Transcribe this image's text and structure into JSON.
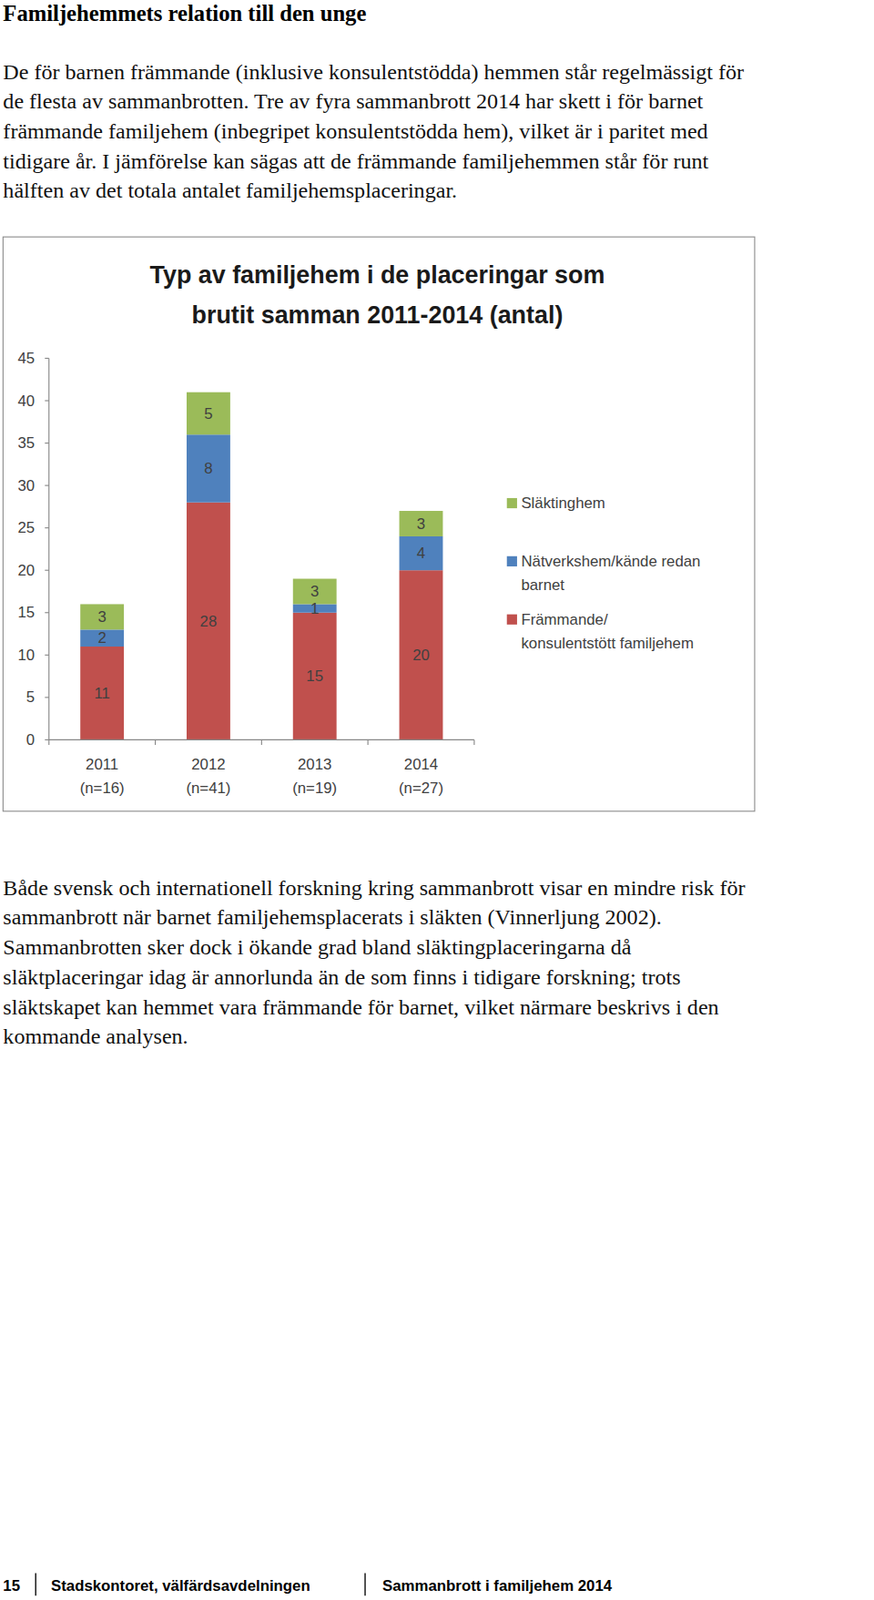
{
  "heading": "Familjehemmets relation till den unge",
  "paragraphs": [
    [
      "De för barnen främmande (inklusive konsulentstödda) hemmen står regelmässigt för",
      "de flesta av sammanbrotten. Tre av fyra sammanbrott 2014 har skett i för barnet",
      "främmande familjehem (inbegripet konsulentstödda hem), vilket är i paritet med",
      "tidigare år. I jämförelse kan sägas att de främmande familjehemmen står för runt",
      "hälften av det totala antalet familjehemsplaceringar."
    ],
    [
      "Både svensk och internationell forskning kring sammanbrott visar en mindre risk för",
      "sammanbrott när barnet familjehemsplacerats i släkten (Vinnerljung 2002).",
      "Sammanbrotten sker dock i ökande grad bland släktingplaceringarna då",
      "släktplaceringar idag är annorlunda än de som finns i tidigare forskning; trots",
      "släktskapet kan hemmet vara främmande för barnet, vilket närmare beskrivs i den",
      "kommande analysen."
    ]
  ],
  "chart_data": {
    "type": "bar",
    "title": "Typ av familjehem i de placeringar som\nbrutit samman 2011-2014 (antal)",
    "categories": [
      "2011\n(n=16)",
      "2012\n(n=41)",
      "2013\n(n=19)",
      "2014\n(n=27)"
    ],
    "series": [
      {
        "name": "Främmande/\nkonsulentstött familjehem",
        "color": "#c0504d",
        "values": [
          11,
          28,
          15,
          20
        ]
      },
      {
        "name": "Nätverkshem/kände redan\nbarnet",
        "color": "#4f81bd",
        "values": [
          2,
          8,
          1,
          4
        ]
      },
      {
        "name": "Släktinghem",
        "color": "#9bbb59",
        "values": [
          3,
          5,
          3,
          3
        ]
      }
    ],
    "stacked": true,
    "data_labels": true,
    "ylim": [
      0,
      45
    ],
    "yticks": [
      0,
      5,
      10,
      15,
      20,
      25,
      30,
      35,
      40,
      45
    ],
    "grid": false,
    "legend": "right"
  },
  "footer": {
    "page": 15,
    "department": "Stadskontoret, välfärdsavdelningen",
    "report": "Sammanbrott i familjehem 2014"
  }
}
